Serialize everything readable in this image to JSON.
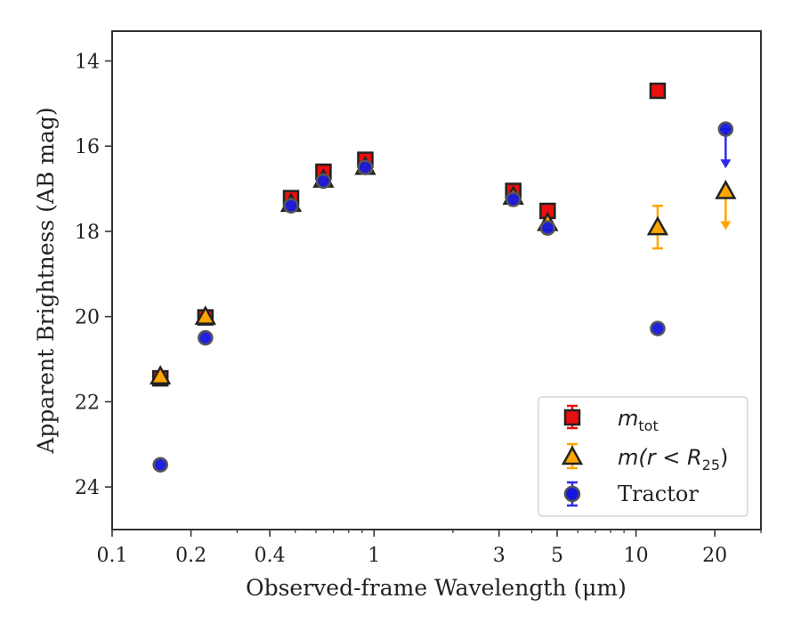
{
  "chart_data": {
    "type": "scatter",
    "xscale": "log",
    "yaxis_inverted": true,
    "xlim": [
      0.1,
      30
    ],
    "ylim": [
      13.3,
      25.0
    ],
    "xlabel": "Observed-frame Wavelength (μm)",
    "ylabel": "Apparent Brightness (AB mag)",
    "xticks": [
      0.1,
      0.2,
      0.4,
      1,
      3,
      5,
      10,
      20
    ],
    "xtick_labels": [
      "0.1",
      "0.2",
      "0.4",
      "1",
      "3",
      "5",
      "10",
      "20"
    ],
    "yticks": [
      14,
      16,
      18,
      20,
      22,
      24
    ],
    "ytick_labels": [
      "14",
      "16",
      "18",
      "20",
      "22",
      "24"
    ],
    "grid": false,
    "legend_position": "lower-right",
    "series": [
      {
        "name": "m_tot",
        "legend_label": "m",
        "legend_sub": "tot",
        "marker": "square",
        "face_color": "#e81010",
        "edge_color": "#222222",
        "error_color": "#e81010",
        "points": [
          {
            "x": 0.1528,
            "y": 21.45,
            "err": 0.05
          },
          {
            "x": 0.2271,
            "y": 20.02,
            "err": 0.05
          },
          {
            "x": 0.482,
            "y": 17.22,
            "err": 0.05
          },
          {
            "x": 0.641,
            "y": 16.6,
            "err": 0.05
          },
          {
            "x": 0.926,
            "y": 16.32,
            "err": 0.05
          },
          {
            "x": 3.4,
            "y": 17.05,
            "err": 0.05
          },
          {
            "x": 4.6,
            "y": 17.52,
            "err": 0.05
          },
          {
            "x": 12.1,
            "y": 14.7,
            "err": 0.05
          }
        ]
      },
      {
        "name": "m(r < R_25)",
        "legend_label": "m(r < R",
        "legend_sub": "25",
        "legend_suffix": ")",
        "marker": "triangle",
        "face_color": "#ffa500",
        "edge_color": "#222222",
        "error_color": "#ffa500",
        "points": [
          {
            "x": 0.1528,
            "y": 21.4,
            "err": 0.1
          },
          {
            "x": 0.2271,
            "y": 20.0,
            "err": 0.05
          },
          {
            "x": 0.482,
            "y": 17.35,
            "err": 0.05
          },
          {
            "x": 0.641,
            "y": 16.78,
            "err": 0.05
          },
          {
            "x": 0.926,
            "y": 16.48,
            "err": 0.05
          },
          {
            "x": 3.4,
            "y": 17.18,
            "err": 0.05
          },
          {
            "x": 4.6,
            "y": 17.8,
            "err": 0.05
          },
          {
            "x": 12.1,
            "y": 17.9,
            "err": 0.5
          },
          {
            "x": 22.0,
            "y": 17.05,
            "upper_limit": true
          }
        ]
      },
      {
        "name": "Tractor",
        "legend_label": "Tractor",
        "marker": "circle",
        "face_color": "#1515e0",
        "edge_color": "#555555",
        "error_color": "#2a2aee",
        "points": [
          {
            "x": 0.1528,
            "y": 23.48,
            "err": 0.05
          },
          {
            "x": 0.2271,
            "y": 20.5,
            "err": 0.05
          },
          {
            "x": 0.482,
            "y": 17.4,
            "err": 0.05
          },
          {
            "x": 0.641,
            "y": 16.82,
            "err": 0.05
          },
          {
            "x": 0.926,
            "y": 16.5,
            "err": 0.05
          },
          {
            "x": 3.4,
            "y": 17.25,
            "err": 0.05
          },
          {
            "x": 4.6,
            "y": 17.92,
            "err": 0.05
          },
          {
            "x": 12.1,
            "y": 20.28,
            "err": 0.05
          },
          {
            "x": 22.0,
            "y": 15.6,
            "upper_limit": true
          }
        ]
      }
    ]
  }
}
